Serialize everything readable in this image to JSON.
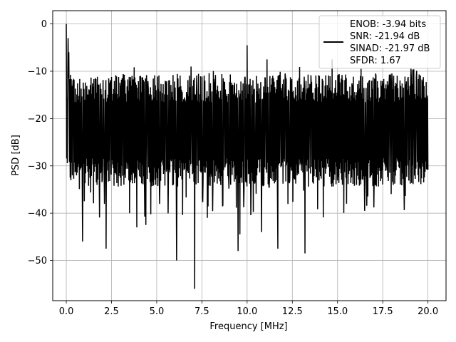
{
  "chart_data": {
    "type": "line",
    "xlabel": "Frequency [MHz]",
    "ylabel": "PSD [dB]",
    "xlim": [
      -0.75,
      21.0
    ],
    "ylim": [
      -58.5,
      2.8
    ],
    "xticks": [
      0.0,
      2.5,
      5.0,
      7.5,
      10.0,
      12.5,
      15.0,
      17.5,
      20.0
    ],
    "xtick_labels": [
      "0.0",
      "2.5",
      "5.0",
      "7.5",
      "10.0",
      "12.5",
      "15.0",
      "17.5",
      "20.0"
    ],
    "yticks": [
      0,
      -10,
      -20,
      -30,
      -40,
      -50
    ],
    "ytick_labels": [
      "0",
      "−10",
      "−20",
      "−30",
      "−40",
      "−50"
    ],
    "grid": true,
    "legend_position": "top-right",
    "line_color": "#000000",
    "grid_color": "#b0b0b0",
    "legend_entries": [
      "ENOB: -3.94 bits",
      "SNR: -21.94 dB",
      "SINAD: -21.97 dB",
      "SFDR: 1.67"
    ],
    "series": [
      {
        "x_range": [
          0.0,
          20.0
        ],
        "points": 1024,
        "band_min": -32,
        "band_max": -13,
        "peaks": [
          {
            "x": 0.0,
            "y": 0.0
          },
          {
            "x": 0.1,
            "y": -3.0
          },
          {
            "x": 0.14,
            "y": -6.0
          },
          {
            "x": 10.0,
            "y": -4.5
          },
          {
            "x": 14.7,
            "y": -7.5
          },
          {
            "x": 11.1,
            "y": -7.5
          },
          {
            "x": 6.9,
            "y": -9.0
          },
          {
            "x": 16.3,
            "y": -9.5
          }
        ],
        "dips": [
          {
            "x": 0.9,
            "y": -46.0
          },
          {
            "x": 2.2,
            "y": -47.5
          },
          {
            "x": 3.9,
            "y": -43.0
          },
          {
            "x": 4.4,
            "y": -42.5
          },
          {
            "x": 6.1,
            "y": -50.0
          },
          {
            "x": 7.1,
            "y": -56.0
          },
          {
            "x": 7.8,
            "y": -41.0
          },
          {
            "x": 9.5,
            "y": -48.0
          },
          {
            "x": 9.6,
            "y": -44.5
          },
          {
            "x": 10.8,
            "y": -44.0
          },
          {
            "x": 11.7,
            "y": -47.5
          },
          {
            "x": 13.2,
            "y": -48.5
          },
          {
            "x": 15.5,
            "y": -38.0
          },
          {
            "x": 16.5,
            "y": -39.5
          }
        ]
      }
    ]
  }
}
